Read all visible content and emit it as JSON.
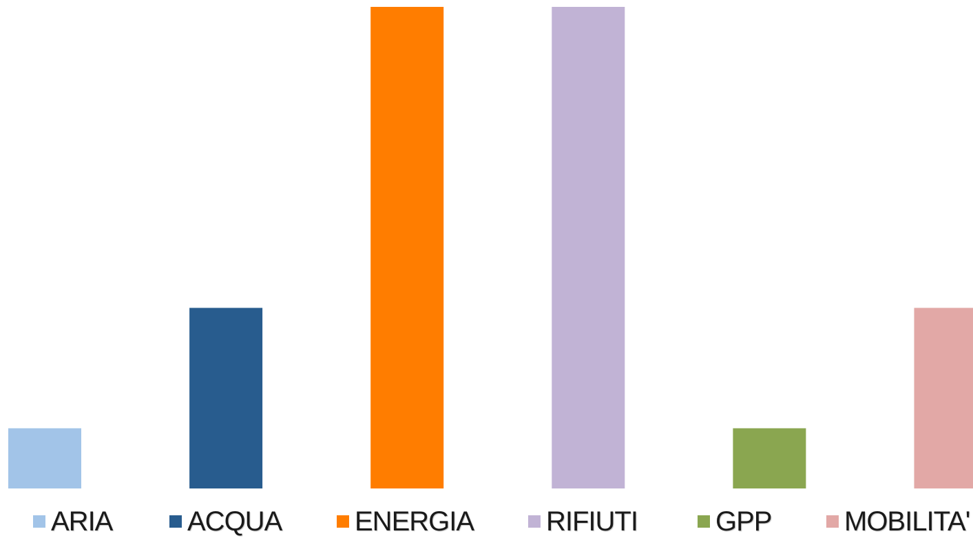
{
  "chart_data": {
    "type": "bar",
    "categories": [
      "ARIA",
      "ACQUA",
      "ENERGIA",
      "RIFIUTI",
      "GPP",
      "MOBILITA'"
    ],
    "values": [
      1,
      3,
      8,
      8,
      1,
      3
    ],
    "colors": [
      "#A2C4E8",
      "#285C8E",
      "#FF7D00",
      "#C1B3D5",
      "#8AA650",
      "#E2A8A6"
    ],
    "ylim": [
      0,
      8
    ],
    "grid": false,
    "legend_position": "bottom",
    "xlabel": "",
    "ylabel": "",
    "title": ""
  }
}
